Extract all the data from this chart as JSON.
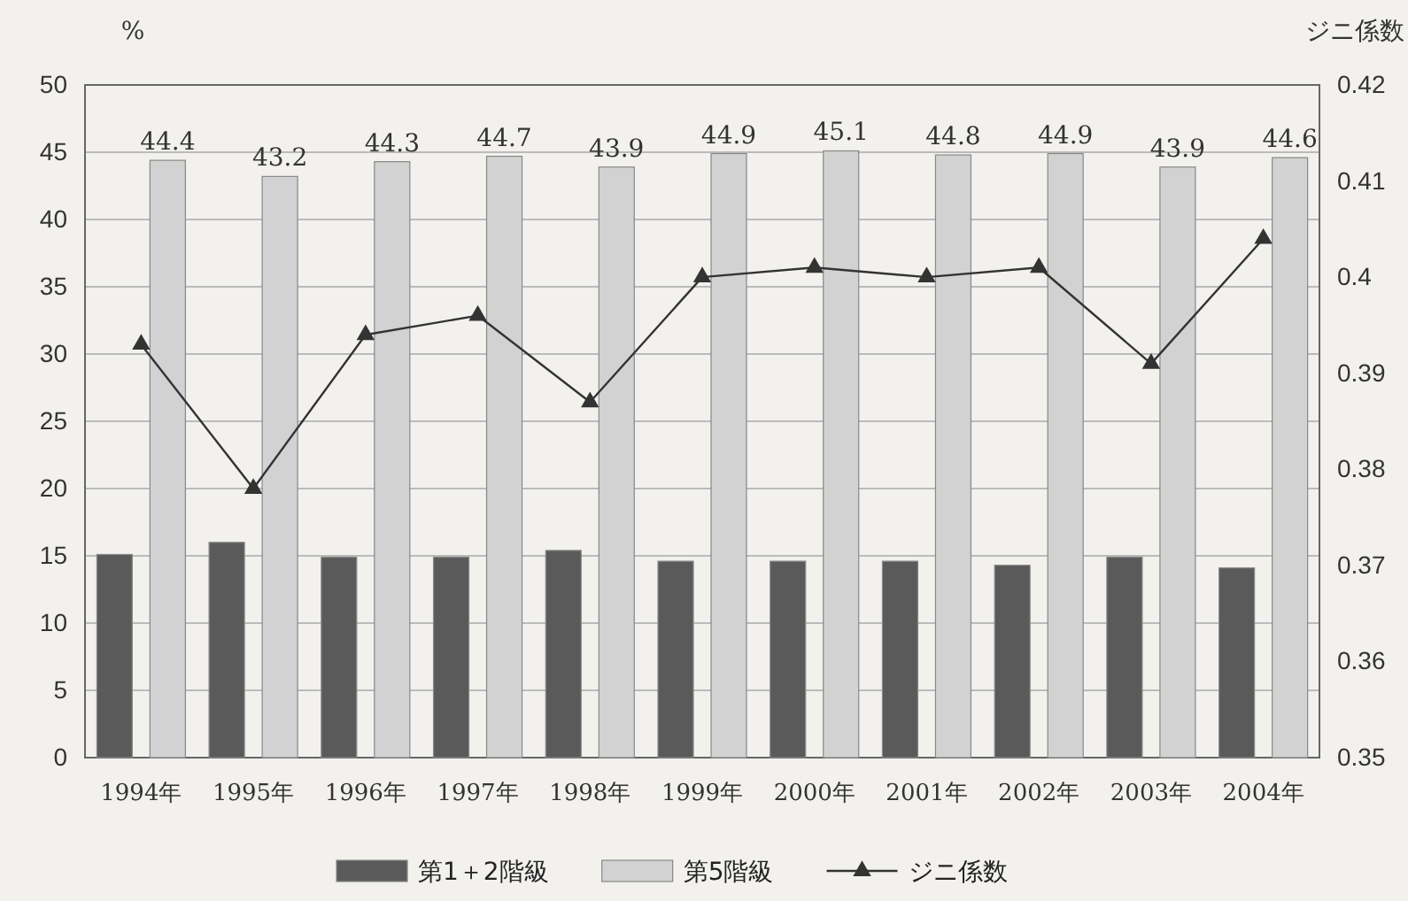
{
  "chart_data": {
    "type": "bar",
    "ylabel": "%",
    "y2label": "ジニ係数",
    "categories": [
      "1994年",
      "1995年",
      "1996年",
      "1997年",
      "1998年",
      "1999年",
      "2000年",
      "2001年",
      "2002年",
      "2003年",
      "2004年"
    ],
    "series": [
      {
        "name": "第1＋2階級",
        "color": "#5a5a5a",
        "values": [
          15.1,
          16.0,
          14.9,
          14.9,
          15.4,
          14.6,
          14.6,
          14.6,
          14.3,
          14.9,
          14.1
        ]
      },
      {
        "name": "第5階級",
        "color": "#d2d2d2",
        "values": [
          44.4,
          43.2,
          44.3,
          44.7,
          43.9,
          44.9,
          45.1,
          44.8,
          44.9,
          43.9,
          44.6
        ],
        "value_labels": [
          "44.4",
          "43.2",
          "44.3",
          "44.7",
          "43.9",
          "44.9",
          "45.1",
          "44.8",
          "44.9",
          "43.9",
          "44.6"
        ]
      },
      {
        "name": "ジニ係数",
        "type": "line",
        "axis": "y2",
        "color": "#333333",
        "marker": "triangle",
        "values": [
          0.393,
          0.378,
          0.394,
          0.396,
          0.387,
          0.4,
          0.401,
          0.4,
          0.401,
          0.391,
          0.404
        ]
      }
    ],
    "ylim": [
      0,
      50
    ],
    "yticks": [
      0,
      5,
      10,
      15,
      20,
      25,
      30,
      35,
      40,
      45,
      50
    ],
    "y2lim": [
      0.35,
      0.42
    ],
    "y2ticks": [
      0.35,
      0.36,
      0.37,
      0.38,
      0.39,
      0.4,
      0.41,
      0.42
    ],
    "grid": "y",
    "legend": "bottom"
  }
}
